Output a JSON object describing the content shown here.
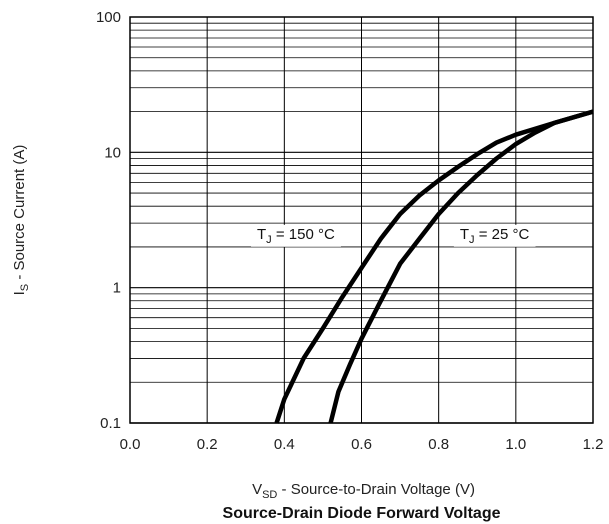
{
  "chart_data": {
    "type": "line",
    "title": "Source-Drain Diode Forward Voltage",
    "xlabel": {
      "main": "V",
      "sub": "SD",
      "rest": " - Source-to-Drain Voltage (V)"
    },
    "ylabel": {
      "main": "I",
      "sub": "S",
      "rest": " - Source Current (A)"
    },
    "xlim": [
      0.0,
      1.2
    ],
    "ylim": [
      0.1,
      100
    ],
    "yscale": "log",
    "grid": true,
    "x_ticks": [
      "0.0",
      "0.2",
      "0.4",
      "0.6",
      "0.8",
      "1.0",
      "1.2"
    ],
    "y_ticks": [
      "0.1",
      "1",
      "10",
      "100"
    ],
    "series": [
      {
        "label": {
          "main": "T",
          "sub": "J",
          "rest": " = 150 °C"
        },
        "x": [
          0.38,
          0.4,
          0.45,
          0.5,
          0.55,
          0.6,
          0.65,
          0.7,
          0.75,
          0.8,
          0.85,
          0.9,
          0.95,
          1.0,
          1.1,
          1.2
        ],
        "y": [
          0.1,
          0.15,
          0.3,
          0.5,
          0.85,
          1.4,
          2.3,
          3.5,
          4.8,
          6.2,
          7.8,
          9.7,
          11.8,
          13.5,
          16.5,
          20
        ]
      },
      {
        "label": {
          "main": "T",
          "sub": "J",
          "rest": " = 25 °C"
        },
        "x": [
          0.52,
          0.54,
          0.57,
          0.6,
          0.65,
          0.7,
          0.75,
          0.8,
          0.85,
          0.9,
          0.95,
          1.0,
          1.05,
          1.1,
          1.2
        ],
        "y": [
          0.1,
          0.17,
          0.27,
          0.42,
          0.8,
          1.5,
          2.3,
          3.5,
          5.0,
          6.8,
          9.0,
          11.5,
          14.0,
          16.5,
          20
        ]
      }
    ]
  }
}
